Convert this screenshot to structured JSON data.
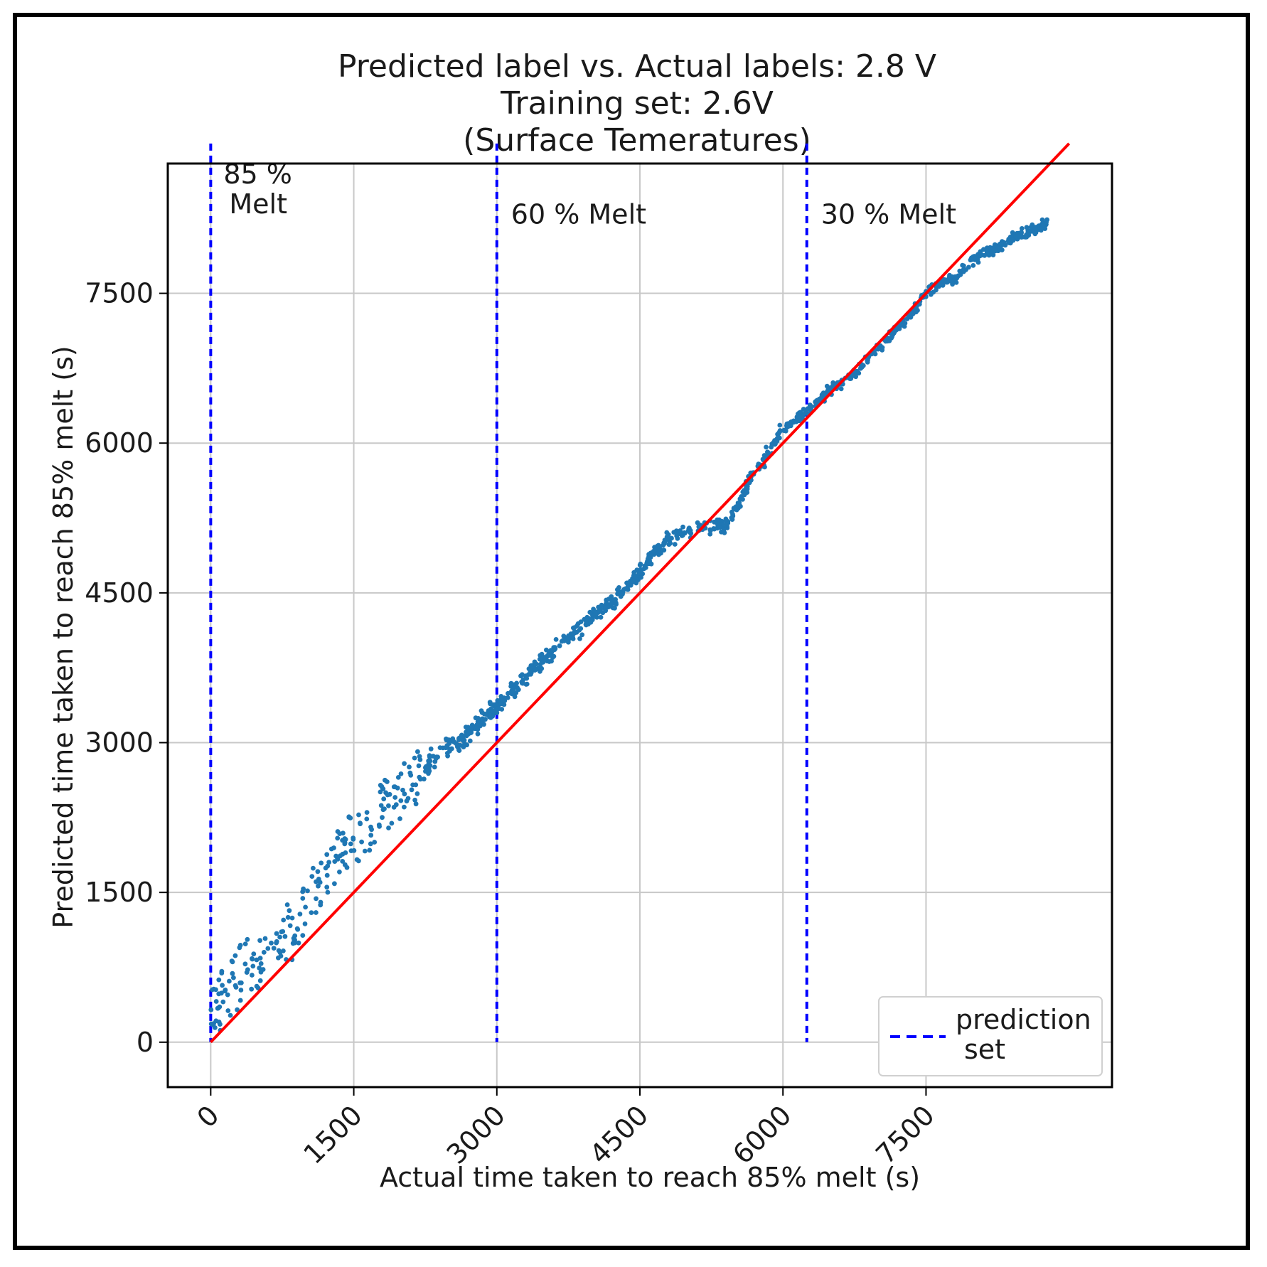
{
  "chart_data": {
    "type": "scatter",
    "title": [
      "Predicted label vs. Actual labels: 2.8 V",
      "Training set: 2.6V",
      "(Surface Temeratures)"
    ],
    "xlabel": "Actual time taken to reach 85% melt (s)",
    "ylabel": "Predicted time taken to reach 85% melt (s)",
    "xlim": [
      -450,
      9450
    ],
    "ylim": [
      -450,
      8800
    ],
    "xticks": [
      0,
      1500,
      3000,
      4500,
      6000,
      7500
    ],
    "yticks": [
      0,
      1500,
      3000,
      4500,
      6000,
      7500
    ],
    "xtick_labels": [
      "0",
      "1500",
      "3000",
      "4500",
      "6000",
      "7500"
    ],
    "ytick_labels": [
      "0",
      "1500",
      "3000",
      "4500",
      "6000",
      "7500"
    ],
    "grid": true,
    "scatter_color": "#1f77b4",
    "identity_line": {
      "x": [
        0,
        9000
      ],
      "y": [
        0,
        9000
      ],
      "color": "#ff0000"
    },
    "prediction_curve": {
      "x": [
        0,
        150,
        300,
        450,
        600,
        750,
        900,
        1050,
        1200,
        1350,
        1500,
        1650,
        1800,
        1950,
        2100,
        2250,
        2400,
        2550,
        2700,
        2850,
        3000,
        3150,
        3300,
        3450,
        3600,
        3750,
        3900,
        4050,
        4200,
        4350,
        4500,
        4650,
        4800,
        4950,
        5100,
        5250,
        5400,
        5550,
        5700,
        5850,
        6000,
        6150,
        6300,
        6450,
        6600,
        6750,
        6900,
        7050,
        7200,
        7350,
        7500,
        7650,
        7800,
        7950,
        8100,
        8250,
        8400,
        8550,
        8770
      ],
      "y": [
        300,
        450,
        700,
        750,
        900,
        1050,
        1100,
        1450,
        1700,
        1900,
        2100,
        2200,
        2400,
        2500,
        2600,
        2750,
        2900,
        3000,
        3100,
        3250,
        3350,
        3500,
        3650,
        3800,
        3950,
        4050,
        4150,
        4300,
        4400,
        4550,
        4700,
        4900,
        5050,
        5100,
        5150,
        5150,
        5200,
        5400,
        5700,
        5900,
        6150,
        6250,
        6350,
        6500,
        6600,
        6700,
        6850,
        7000,
        7150,
        7300,
        7500,
        7600,
        7650,
        7800,
        7900,
        7950,
        8050,
        8100,
        8200
      ]
    },
    "vlines": [
      {
        "x": 0,
        "label": [
          "85 %",
          "Melt"
        ]
      },
      {
        "x": 3000,
        "label": [
          "60 % Melt"
        ]
      },
      {
        "x": 6250,
        "label": [
          "30 % Melt"
        ]
      }
    ],
    "vline_color": "#0000ff",
    "vline_top": 9000,
    "legend": {
      "label": [
        "prediction",
        "set"
      ],
      "location": "lower-right"
    }
  }
}
